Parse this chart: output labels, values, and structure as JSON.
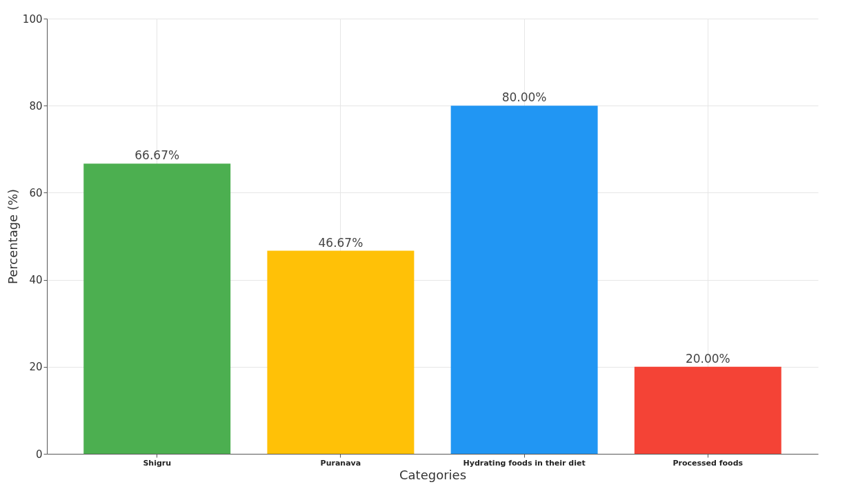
{
  "chart_data": {
    "type": "bar",
    "xlabel": "Categories",
    "ylabel": "Percentage (%)",
    "categories": [
      "Shigru",
      "Puranava",
      "Hydrating foods in their diet",
      "Processed foods"
    ],
    "values": [
      66.67,
      46.67,
      80.0,
      20.0
    ],
    "colors": [
      "#4caf50",
      "#ffc107",
      "#2196f3",
      "#f44336"
    ],
    "value_labels": [
      "66.67%",
      "46.67%",
      "80.00%",
      "20.00%"
    ],
    "ylim": [
      0,
      100
    ],
    "yticks": [
      0,
      20,
      40,
      60,
      80,
      100
    ],
    "grid": true
  }
}
